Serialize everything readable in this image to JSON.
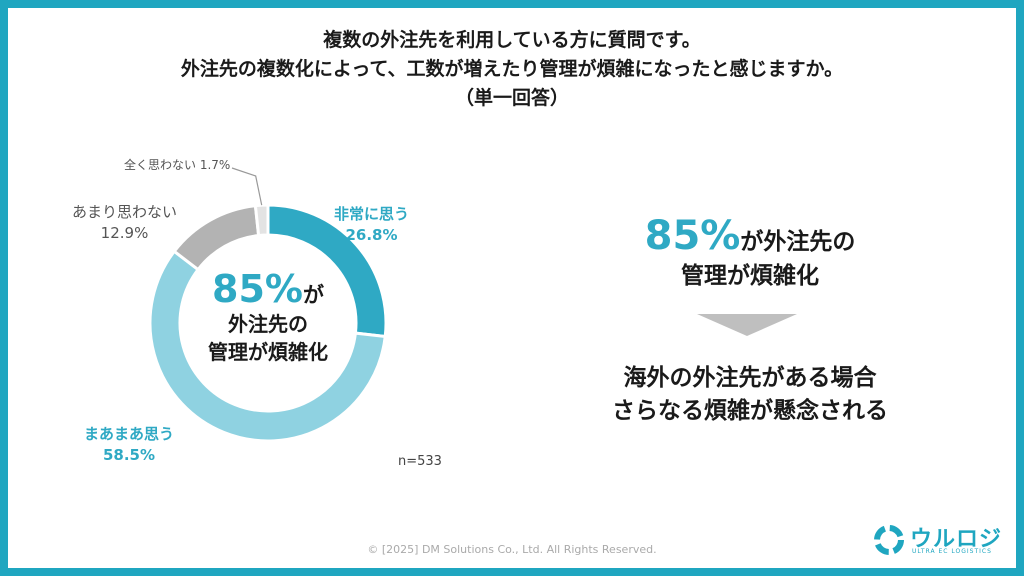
{
  "title": {
    "line1": "複数の外注先を利用している方に質問です。",
    "line2": "外注先の複数化によって、工数が増えたり管理が煩雑になったと感じますか。",
    "line3": "（単一回答）"
  },
  "chart_data": {
    "type": "pie",
    "style": "donut",
    "categories": [
      "非常に思う",
      "まあまあ思う",
      "あまり思わない",
      "全く思わない"
    ],
    "values": [
      26.8,
      58.5,
      12.9,
      1.7
    ],
    "value_labels": [
      "26.8%",
      "58.5%",
      "12.9%",
      "1.7%"
    ],
    "colors": [
      "#2fa9c4",
      "#8fd2e1",
      "#b3b3b3",
      "#e3e3e3"
    ],
    "center_text": {
      "big": "85%",
      "suffix": "が",
      "line1": "外注先の",
      "line2": "管理が煩雑化"
    },
    "n_label": "n=533"
  },
  "summary": {
    "big": "85%",
    "suffix": "が外注先の",
    "line2": "管理が煩雑化",
    "conclusion_line1": "海外の外注先がある場合",
    "conclusion_line2": "さらなる煩雑が懸念される"
  },
  "footer": "© [2025] DM Solutions Co., Ltd. All Rights Reserved.",
  "logo": {
    "text": "ウルロジ",
    "subtitle": "ULTRA EC LOGISTICS",
    "icon": "logo-mark-icon"
  }
}
